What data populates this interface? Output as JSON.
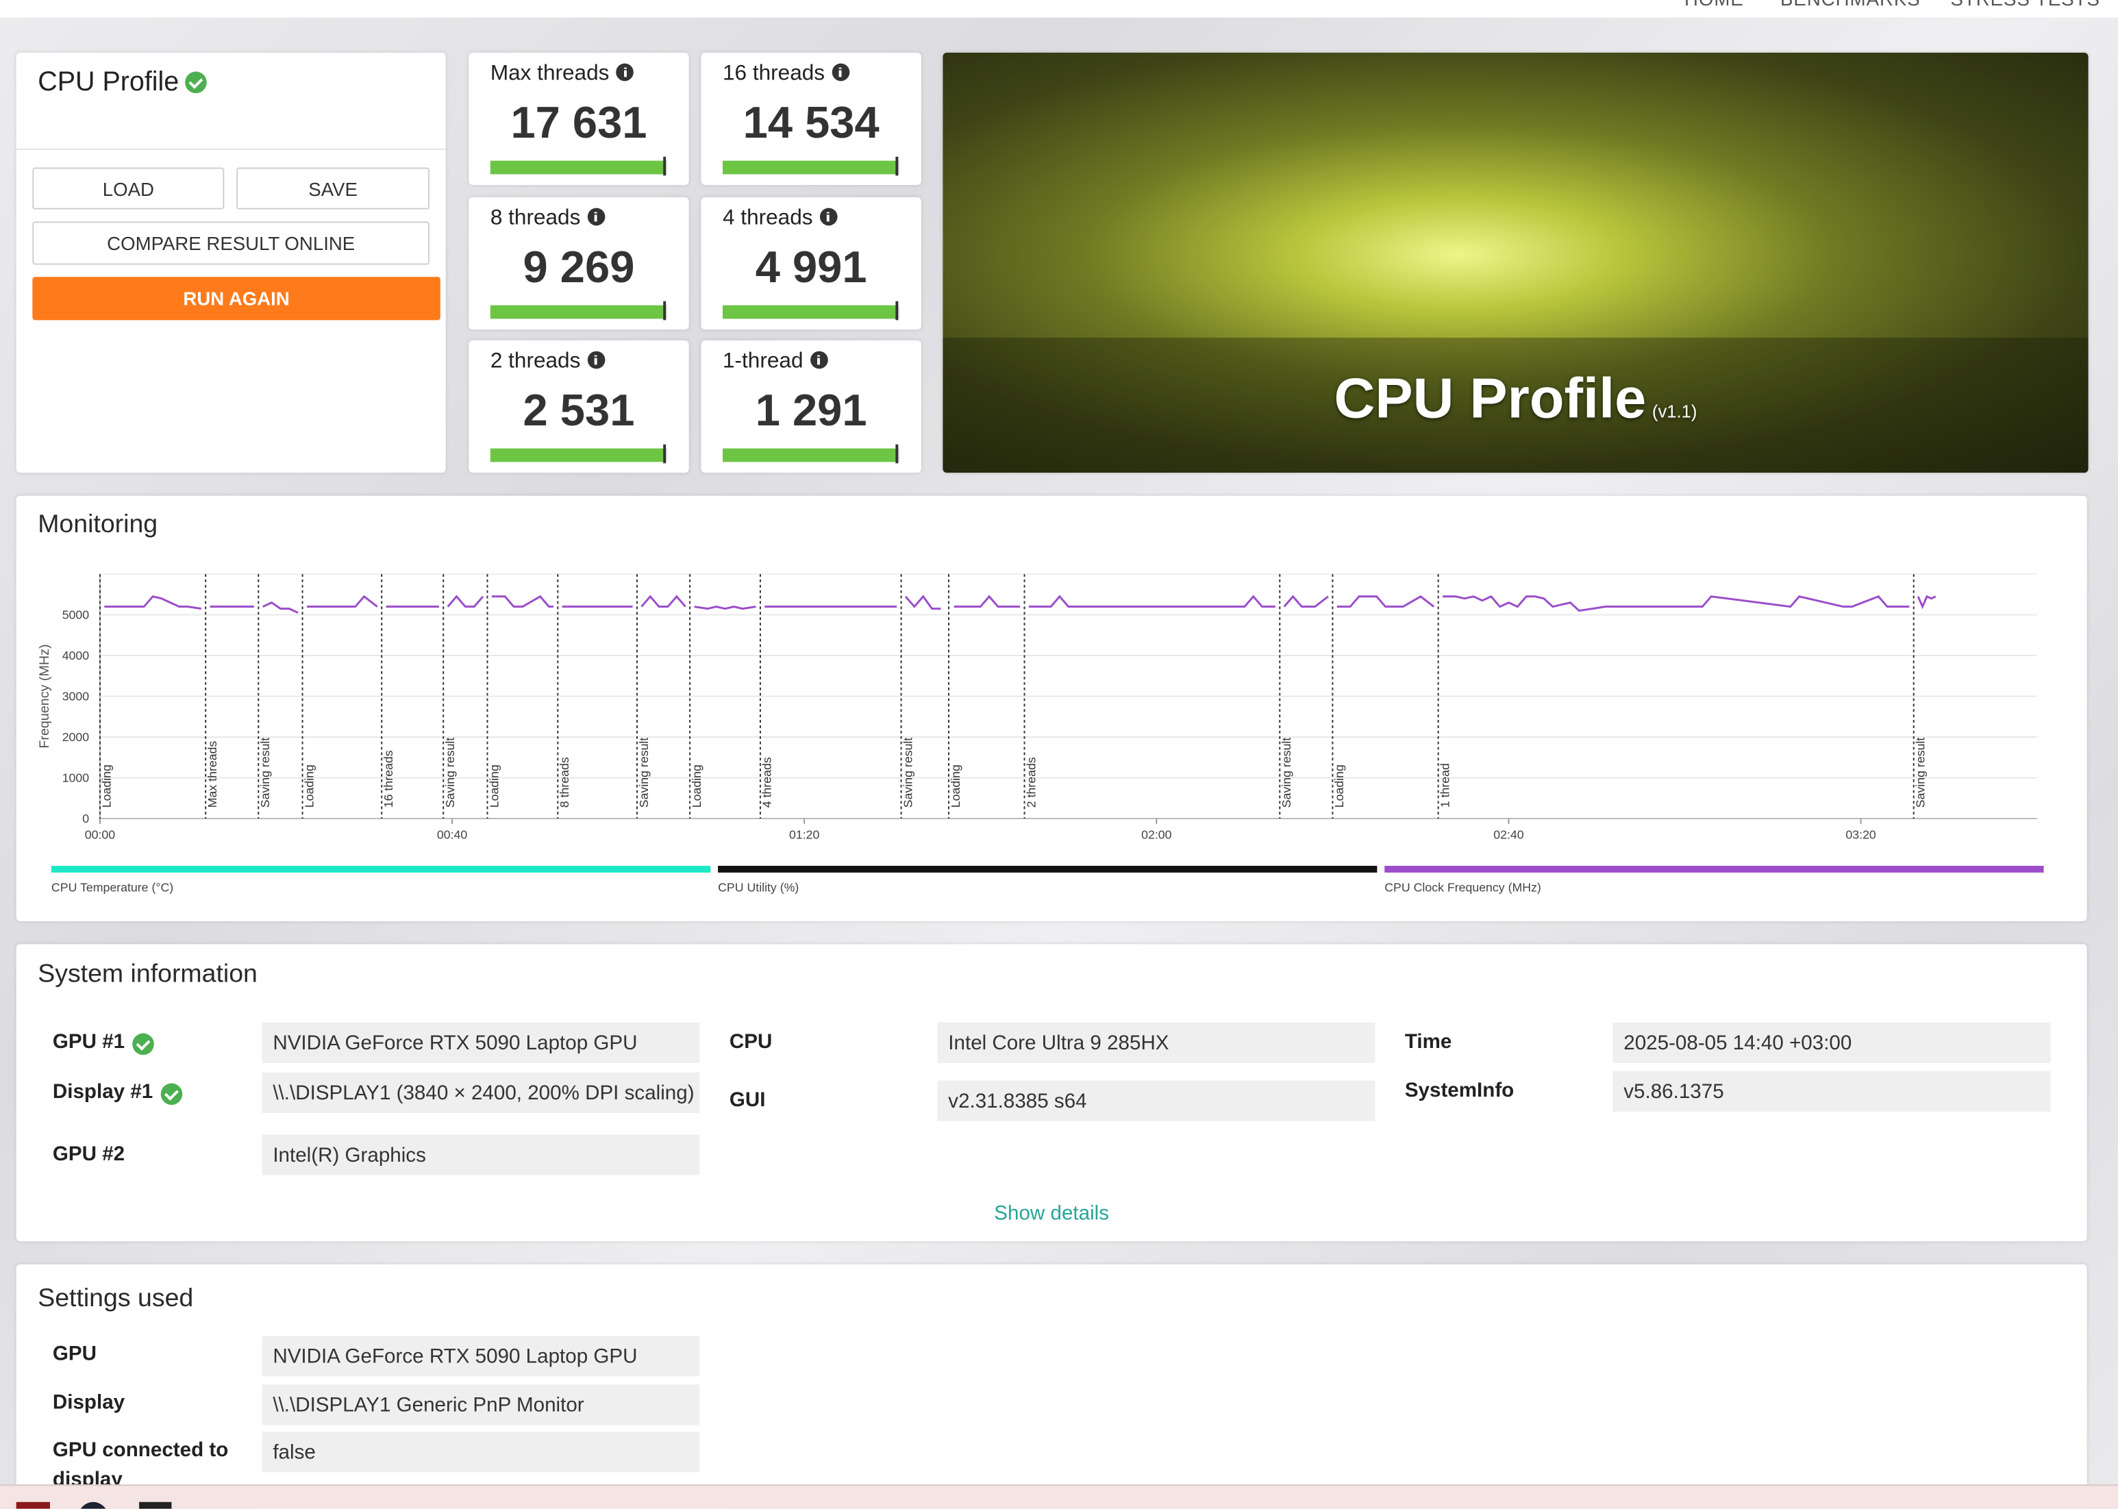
{
  "nav": [
    "HOME",
    "BENCHMARKS",
    "STRESS TESTS"
  ],
  "profile": {
    "title": "CPU Profile",
    "verified": true,
    "buttons": [
      "LOAD",
      "SAVE",
      "COMPARE RESULT ONLINE",
      "RUN AGAIN"
    ]
  },
  "scores": [
    {
      "label": "Max threads",
      "score": "17 631"
    },
    {
      "label": "16 threads",
      "score": "14 534"
    },
    {
      "label": "8 threads",
      "score": "9 269"
    },
    {
      "label": "4 threads",
      "score": "4 991"
    },
    {
      "label": "2 threads",
      "score": "2 531"
    },
    {
      "label": "1-thread",
      "score": "1 291"
    }
  ],
  "banner": {
    "title": "CPU Profile",
    "version": "(v1.1)"
  },
  "chart_data": {
    "type": "line",
    "title": "Monitoring",
    "y_label": "Frequency (MHz)",
    "xlim": [
      0,
      220
    ],
    "xticks": [
      {
        "value": 0,
        "label": "00:00"
      },
      {
        "value": 40,
        "label": "00:40"
      },
      {
        "value": 80,
        "label": "01:20"
      },
      {
        "value": 120,
        "label": "02:00"
      },
      {
        "value": 160,
        "label": "02:40"
      },
      {
        "value": 200,
        "label": "03:20"
      }
    ],
    "ylim": [
      0,
      6000
    ],
    "yticks": [
      0,
      1000,
      2000,
      3000,
      4000,
      5000
    ],
    "grid": true,
    "markers": [
      {
        "x": 0,
        "label": "Loading"
      },
      {
        "x": 12,
        "label": "Max threads"
      },
      {
        "x": 18,
        "label": "Saving result"
      },
      {
        "x": 23,
        "label": "Loading"
      },
      {
        "x": 32,
        "label": "16 threads"
      },
      {
        "x": 39,
        "label": "Saving result"
      },
      {
        "x": 44,
        "label": "Loading"
      },
      {
        "x": 52,
        "label": "8 threads"
      },
      {
        "x": 61,
        "label": "Saving result"
      },
      {
        "x": 67,
        "label": "Loading"
      },
      {
        "x": 75,
        "label": "4 threads"
      },
      {
        "x": 91,
        "label": "Saving result"
      },
      {
        "x": 96.4,
        "label": "Loading"
      },
      {
        "x": 105,
        "label": "2 threads"
      },
      {
        "x": 134,
        "label": "Saving result"
      },
      {
        "x": 140,
        "label": "Loading"
      },
      {
        "x": 152,
        "label": "1 thread"
      },
      {
        "x": 206,
        "label": "Saving result"
      }
    ],
    "x": [
      0.5,
      2,
      4,
      5,
      6,
      7,
      8,
      9,
      10,
      11.5,
      12,
      12.5,
      15,
      17.5,
      18,
      18.5,
      19.5,
      20.5,
      21.5,
      22.5,
      23,
      23.5,
      27,
      29,
      30,
      31.5,
      32,
      32.5,
      36,
      38.5,
      39,
      39.5,
      40.5,
      41.5,
      42.5,
      43.5,
      44,
      44.5,
      46,
      47,
      48,
      50,
      51,
      51.5,
      52,
      52.5,
      60.5,
      61,
      61.5,
      62.5,
      63.5,
      64.5,
      65.5,
      66.5,
      67,
      67.5,
      69,
      70,
      71,
      72,
      73,
      74.5,
      75,
      75.5,
      90.5,
      91,
      91.5,
      92.5,
      93.5,
      94.5,
      95.5,
      96,
      97,
      100,
      101,
      102,
      104.5,
      105,
      105.5,
      108,
      109,
      110,
      120,
      130,
      131,
      132,
      133.5,
      134,
      134.5,
      135.5,
      136.5,
      138,
      139.5,
      140,
      140.5,
      142,
      143,
      145,
      146,
      148,
      150,
      151.5,
      152,
      152.5,
      154,
      155,
      156,
      157,
      158,
      159,
      160,
      161,
      162,
      163,
      164,
      165,
      167,
      168,
      171,
      178,
      182,
      183,
      192,
      193,
      198,
      199,
      202,
      203,
      205.5,
      206,
      206.5,
      207,
      207.5,
      208,
      208.5
    ],
    "series": [
      {
        "name": "CPU Temperature (°C)",
        "color": "#1de9c6"
      },
      {
        "name": "CPU Utility (%)",
        "color": "#111111"
      },
      {
        "name": "CPU Clock Frequency (MHz)",
        "color": "#9b4dca",
        "values": [
          5200,
          5200,
          5200,
          5200,
          5450,
          5400,
          5300,
          5200,
          5200,
          5150,
          null,
          5200,
          5200,
          5200,
          null,
          5200,
          5300,
          5150,
          5150,
          5050,
          null,
          5200,
          5200,
          5200,
          5450,
          5200,
          null,
          5200,
          5200,
          5200,
          null,
          5200,
          5450,
          5200,
          5200,
          5450,
          null,
          5450,
          5450,
          5200,
          5200,
          5450,
          5200,
          5200,
          null,
          5200,
          5200,
          null,
          5200,
          5450,
          5200,
          5200,
          5450,
          5200,
          null,
          5200,
          5150,
          5200,
          5150,
          5200,
          5150,
          5200,
          null,
          5200,
          5200,
          null,
          5450,
          5200,
          5450,
          5150,
          5150,
          null,
          5200,
          5200,
          5450,
          5200,
          5200,
          null,
          5200,
          5200,
          5450,
          5200,
          5200,
          5200,
          5450,
          5200,
          5200,
          null,
          5200,
          5450,
          5200,
          5200,
          5450,
          null,
          5200,
          5200,
          5450,
          5450,
          5200,
          5200,
          5450,
          5200,
          null,
          5450,
          5450,
          5400,
          5450,
          5350,
          5450,
          5200,
          5300,
          5200,
          5450,
          5450,
          5400,
          5200,
          5300,
          5100,
          5200,
          5200,
          5200,
          5450,
          5200,
          5450,
          5200,
          5200,
          5450,
          5200,
          5200,
          null,
          5450,
          5200,
          5450,
          5400,
          5450
        ]
      }
    ]
  },
  "system_information": {
    "title": "System information",
    "link": "Show details",
    "columns": [
      [
        {
          "label": "GPU #1",
          "value": "NVIDIA GeForce RTX 5090 Laptop GPU",
          "verified": true
        },
        {
          "label": "Display #1",
          "value": "\\\\.\\DISPLAY1 (3840 × 2400, 200% DPI scaling)",
          "verified": true
        },
        {
          "label": "GPU #2",
          "value": "Intel(R) Graphics"
        }
      ],
      [
        {
          "label": "CPU",
          "value": "Intel Core Ultra 9 285HX"
        },
        {
          "label": "GUI",
          "value": "v2.31.8385 s64"
        }
      ],
      [
        {
          "label": "Time",
          "value": "2025-08-05 14:40 +03:00"
        },
        {
          "label": "SystemInfo",
          "value": "v5.86.1375"
        }
      ]
    ]
  },
  "settings_used": {
    "title": "Settings used",
    "rows": [
      {
        "label": "GPU",
        "value": "NVIDIA GeForce RTX 5090 Laptop GPU"
      },
      {
        "label": "Display",
        "value": "\\\\.\\DISPLAY1 Generic PnP Monitor"
      },
      {
        "label": "GPU connected to display",
        "value": "false"
      }
    ]
  }
}
